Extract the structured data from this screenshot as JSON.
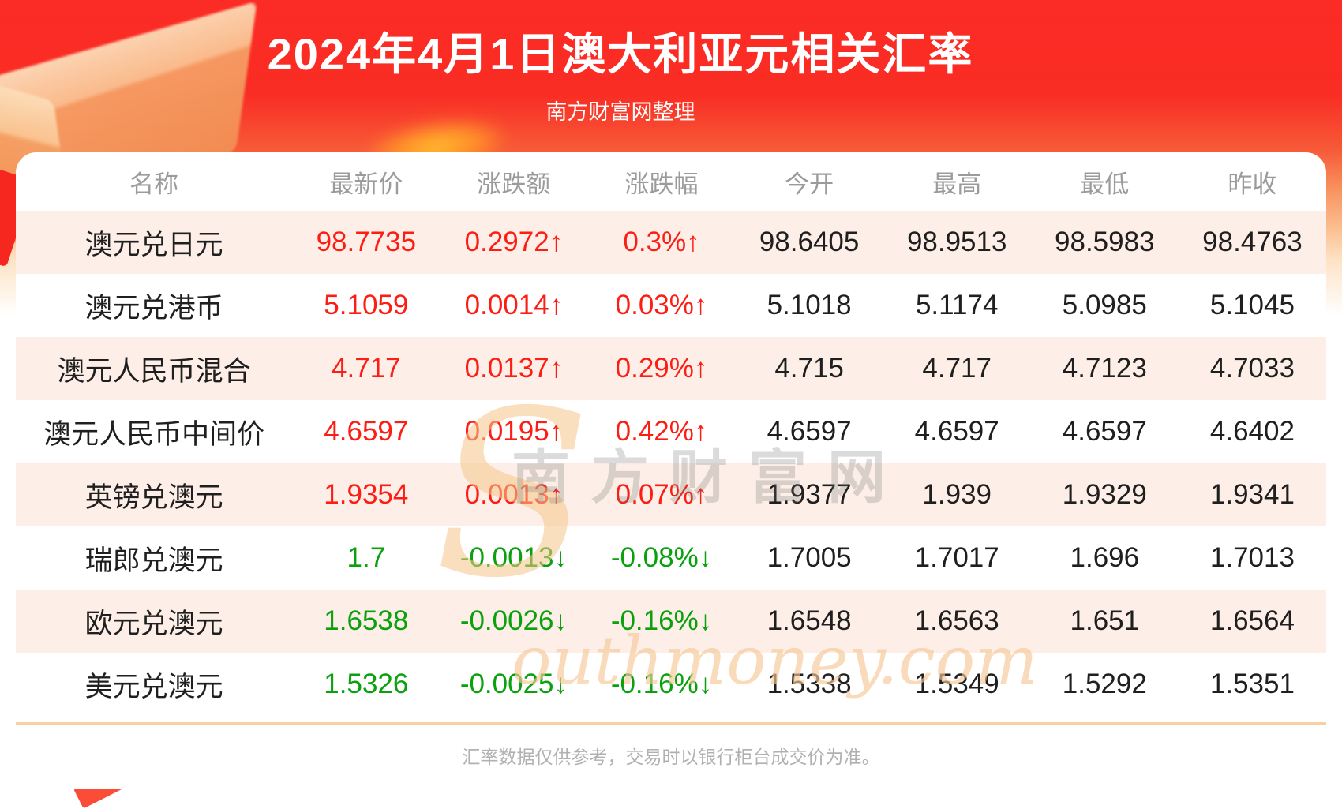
{
  "page": {
    "header": {
      "title": "2024年4月1日澳大利亚元相关汇率",
      "subtitle": "南方财富网整理"
    },
    "watermark": {
      "script_s": "S",
      "cn_text": "南方财富网",
      "en_text": "outhmoney.com"
    },
    "footer_note": "汇率数据仅供参考，交易时以银行柜台成交价为准。"
  },
  "chart_data": {
    "type": "table",
    "title": "2024年4月1日澳大利亚元相关汇率",
    "source": "南方财富网整理",
    "columns": [
      "名称",
      "最新价",
      "涨跌额",
      "涨跌幅",
      "今开",
      "最高",
      "最低",
      "昨收"
    ],
    "rows": [
      {
        "name": "澳元兑日元",
        "latest": "98.7735",
        "change": "0.2972↑",
        "change_pct": "0.3%↑",
        "open": "98.6405",
        "high": "98.9513",
        "low": "98.5983",
        "prev_close": "98.4763",
        "direction": "up"
      },
      {
        "name": "澳元兑港币",
        "latest": "5.1059",
        "change": "0.0014↑",
        "change_pct": "0.03%↑",
        "open": "5.1018",
        "high": "5.1174",
        "low": "5.0985",
        "prev_close": "5.1045",
        "direction": "up"
      },
      {
        "name": "澳元人民币混合",
        "latest": "4.717",
        "change": "0.0137↑",
        "change_pct": "0.29%↑",
        "open": "4.715",
        "high": "4.717",
        "low": "4.7123",
        "prev_close": "4.7033",
        "direction": "up"
      },
      {
        "name": "澳元人民币中间价",
        "latest": "4.6597",
        "change": "0.0195↑",
        "change_pct": "0.42%↑",
        "open": "4.6597",
        "high": "4.6597",
        "low": "4.6597",
        "prev_close": "4.6402",
        "direction": "up"
      },
      {
        "name": "英镑兑澳元",
        "latest": "1.9354",
        "change": "0.0013↑",
        "change_pct": "0.07%↑",
        "open": "1.9377",
        "high": "1.939",
        "low": "1.9329",
        "prev_close": "1.9341",
        "direction": "up"
      },
      {
        "name": "瑞郎兑澳元",
        "latest": "1.7",
        "change": "-0.0013↓",
        "change_pct": "-0.08%↓",
        "open": "1.7005",
        "high": "1.7017",
        "low": "1.696",
        "prev_close": "1.7013",
        "direction": "down"
      },
      {
        "name": "欧元兑澳元",
        "latest": "1.6538",
        "change": "-0.0026↓",
        "change_pct": "-0.16%↓",
        "open": "1.6548",
        "high": "1.6563",
        "low": "1.651",
        "prev_close": "1.6564",
        "direction": "down"
      },
      {
        "name": "美元兑澳元",
        "latest": "1.5326",
        "change": "-0.0025↓",
        "change_pct": "-0.16%↓",
        "open": "1.5338",
        "high": "1.5349",
        "low": "1.5292",
        "prev_close": "1.5351",
        "direction": "down"
      }
    ],
    "colors": {
      "up": "#fc1e14",
      "down": "#0aa00e"
    }
  }
}
